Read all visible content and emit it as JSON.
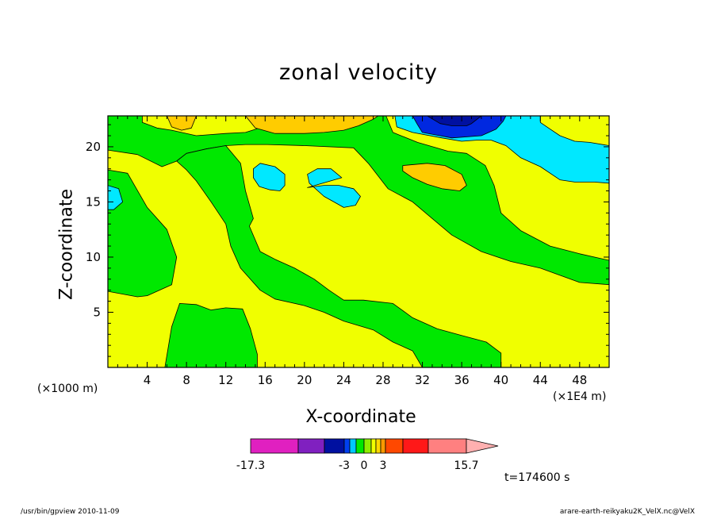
{
  "chart_data": {
    "type": "heatmap",
    "title": "zonal velocity",
    "xlabel": "X-coordinate",
    "ylabel": "Z-coordinate",
    "x_unit_left": "(×1000 m)",
    "x_unit_right": "(×1E4 m)",
    "xlim": [
      0,
      51
    ],
    "ylim": [
      0,
      22.8
    ],
    "x_ticks": [
      4,
      8,
      12,
      16,
      20,
      24,
      28,
      32,
      36,
      40,
      44,
      48
    ],
    "y_ticks": [
      5,
      10,
      15,
      20
    ],
    "contour_levels": [
      -17.3,
      -10,
      -3,
      -2,
      -1,
      0,
      1,
      2,
      3,
      6,
      10,
      15.7
    ],
    "colorbar": {
      "tick_labels": [
        "-17.3",
        "-3",
        "0",
        "3",
        "15.7"
      ],
      "colors": [
        "#e020c0",
        "#8020c0",
        "#0010a0",
        "#0040f0",
        "#00c8ff",
        "#00e800",
        "#90ee00",
        "#f0ff00",
        "#ffd800",
        "#ff9900",
        "#ff4800",
        "#ff1818",
        "#ff8080",
        "#ffb0b0"
      ]
    },
    "regions": [
      {
        "value_class": "positive",
        "color": "#f0ff00",
        "points": [
          [
            0,
            22.8
          ],
          [
            51,
            22.8
          ],
          [
            51,
            0
          ],
          [
            0,
            0
          ]
        ]
      },
      {
        "value_class": "negative",
        "color": "#00e800",
        "points": [
          [
            0,
            19.7
          ],
          [
            3,
            19.3
          ],
          [
            5.5,
            18.2
          ],
          [
            7,
            18.7
          ],
          [
            8,
            19.4
          ],
          [
            10,
            19.8
          ],
          [
            12,
            20.1
          ],
          [
            14,
            20.2
          ],
          [
            16.2,
            20.2
          ],
          [
            20,
            20.1
          ],
          [
            25,
            19.9
          ],
          [
            26.5,
            18.5
          ],
          [
            28.5,
            16.2
          ],
          [
            31,
            15
          ],
          [
            33,
            13.5
          ],
          [
            35,
            12
          ],
          [
            38,
            10.5
          ],
          [
            41,
            9.6
          ],
          [
            44,
            9
          ],
          [
            48,
            7.7
          ],
          [
            51,
            7.5
          ],
          [
            51,
            9.7
          ],
          [
            48,
            10.3
          ],
          [
            45,
            11
          ],
          [
            42,
            12.4
          ],
          [
            40,
            14
          ],
          [
            39.3,
            16.5
          ],
          [
            38.4,
            18.3
          ],
          [
            36.5,
            19.4
          ],
          [
            34.6,
            19.6
          ],
          [
            31.5,
            20.4
          ],
          [
            29,
            21.3
          ],
          [
            28.3,
            22.8
          ],
          [
            16,
            22.8
          ],
          [
            15.8,
            21.8
          ],
          [
            14,
            21.3
          ],
          [
            12,
            21.2
          ],
          [
            9,
            21
          ],
          [
            6.5,
            21.5
          ],
          [
            5,
            21.7
          ],
          [
            3.5,
            22.2
          ],
          [
            3.5,
            22.8
          ],
          [
            0,
            22.8
          ]
        ]
      },
      {
        "value_class": "negative",
        "color": "#00e800",
        "points": [
          [
            0,
            17.9
          ],
          [
            2,
            17.6
          ],
          [
            4,
            14.5
          ],
          [
            6,
            12.5
          ],
          [
            7,
            10
          ],
          [
            6.5,
            7.5
          ],
          [
            4,
            6.5
          ],
          [
            3,
            6.4
          ],
          [
            0,
            6.9
          ]
        ]
      },
      {
        "value_class": "negative",
        "color": "#00e800",
        "points": [
          [
            14,
            16
          ],
          [
            14.8,
            13.5
          ],
          [
            14.4,
            12.8
          ],
          [
            15.5,
            10.5
          ],
          [
            17,
            9.8
          ],
          [
            19,
            9
          ],
          [
            21,
            8
          ],
          [
            22.5,
            7
          ],
          [
            24,
            6.1
          ],
          [
            26,
            6.1
          ],
          [
            29,
            5.8
          ],
          [
            31,
            4.5
          ],
          [
            33.5,
            3.5
          ],
          [
            36,
            2.9
          ],
          [
            38.5,
            2.3
          ],
          [
            40,
            1.3
          ],
          [
            40,
            0
          ],
          [
            32,
            0
          ],
          [
            31,
            1.5
          ],
          [
            29,
            2.3
          ],
          [
            27,
            3.4
          ],
          [
            24,
            4.2
          ],
          [
            22,
            5
          ],
          [
            20,
            5.6
          ],
          [
            17,
            6.2
          ],
          [
            15.5,
            7
          ],
          [
            13.5,
            9
          ],
          [
            12.5,
            11
          ],
          [
            12,
            13
          ],
          [
            10.5,
            15
          ],
          [
            9,
            16.9
          ],
          [
            8,
            17.9
          ],
          [
            7,
            18.7
          ],
          [
            8,
            19.4
          ],
          [
            10,
            19.8
          ],
          [
            12,
            20.1
          ],
          [
            13.5,
            18.5
          ]
        ]
      },
      {
        "value_class": "negative",
        "color": "#00e800",
        "points": [
          [
            5.8,
            0
          ],
          [
            6.5,
            3.7
          ],
          [
            7.3,
            5.8
          ],
          [
            9,
            5.7
          ],
          [
            10.5,
            5.2
          ],
          [
            12,
            5.4
          ],
          [
            13.7,
            5.3
          ],
          [
            14.5,
            3.5
          ],
          [
            15.2,
            1.2
          ],
          [
            15.2,
            0
          ]
        ]
      },
      {
        "value_class": "strong negative",
        "color": "#00e8ff",
        "points": [
          [
            0,
            16.5
          ],
          [
            1.1,
            16.2
          ],
          [
            1.5,
            15
          ],
          [
            0.6,
            14.3
          ],
          [
            0,
            14.3
          ]
        ]
      },
      {
        "value_class": "strong negative",
        "color": "#00e8ff",
        "points": [
          [
            14.8,
            18
          ],
          [
            15.5,
            18.5
          ],
          [
            17,
            18.2
          ],
          [
            18,
            17.5
          ],
          [
            18,
            16.5
          ],
          [
            17.5,
            16
          ],
          [
            16.5,
            16.1
          ],
          [
            15.4,
            16.4
          ],
          [
            14.8,
            17.2
          ]
        ]
      },
      {
        "value_class": "strong negative",
        "color": "#00e8ff",
        "points": [
          [
            20.3,
            16.3
          ],
          [
            22,
            16.5
          ],
          [
            23.5,
            16.5
          ],
          [
            25,
            16.2
          ],
          [
            25.7,
            15.5
          ],
          [
            25.2,
            14.7
          ],
          [
            24,
            14.5
          ],
          [
            23,
            15
          ],
          [
            22,
            15.5
          ],
          [
            20.5,
            16.7
          ],
          [
            20.3,
            17.5
          ],
          [
            21.3,
            18
          ],
          [
            22.7,
            18
          ],
          [
            23.8,
            17.2
          ]
        ]
      },
      {
        "value_class": "strong negative",
        "color": "#00e8ff",
        "points": [
          [
            29.2,
            22.8
          ],
          [
            29.4,
            21.8
          ],
          [
            31,
            21.3
          ],
          [
            34,
            20.8
          ],
          [
            36,
            20.5
          ],
          [
            37.5,
            20.6
          ],
          [
            39,
            20.6
          ],
          [
            40.5,
            20.1
          ],
          [
            42,
            19
          ],
          [
            44,
            18.2
          ],
          [
            46,
            17
          ],
          [
            47.5,
            16.8
          ],
          [
            49.5,
            16.8
          ],
          [
            51,
            16.7
          ],
          [
            51,
            20.1
          ],
          [
            49,
            20.4
          ],
          [
            47.5,
            20.5
          ],
          [
            46,
            21
          ],
          [
            45,
            21.6
          ],
          [
            44,
            22.2
          ],
          [
            44,
            22.8
          ]
        ]
      },
      {
        "value_class": "minimum",
        "color": "#0028e0",
        "points": [
          [
            31,
            22.8
          ],
          [
            31.5,
            22
          ],
          [
            32,
            21.3
          ],
          [
            35,
            20.8
          ],
          [
            38,
            21
          ],
          [
            39.5,
            21.6
          ],
          [
            40.2,
            22.3
          ],
          [
            40.5,
            22.8
          ]
        ]
      },
      {
        "value_class": "minimum core",
        "color": "#0010a0",
        "points": [
          [
            32.5,
            22.8
          ],
          [
            33.8,
            22.1
          ],
          [
            35,
            21.9
          ],
          [
            36.5,
            21.9
          ],
          [
            37,
            22.1
          ],
          [
            38,
            22.8
          ]
        ]
      },
      {
        "value_class": "maximum",
        "color": "#ffcc00",
        "points": [
          [
            30,
            18.3
          ],
          [
            32.5,
            18.5
          ],
          [
            34.3,
            18.3
          ],
          [
            36,
            17.5
          ],
          [
            36.5,
            16.5
          ],
          [
            35.8,
            16
          ],
          [
            34,
            16.2
          ],
          [
            32.5,
            16.6
          ],
          [
            31,
            17.2
          ],
          [
            30,
            17.8
          ]
        ]
      },
      {
        "value_class": "maximum",
        "color": "#ffcc00",
        "points": [
          [
            14,
            22.8
          ],
          [
            15,
            21.7
          ],
          [
            17,
            21.2
          ],
          [
            20,
            21.2
          ],
          [
            22,
            21.3
          ],
          [
            24,
            21.5
          ],
          [
            25.5,
            21.9
          ],
          [
            27,
            22.5
          ],
          [
            27.5,
            22.8
          ]
        ]
      },
      {
        "value_class": "maximum",
        "color": "#ffcc00",
        "points": [
          [
            6,
            22.8
          ],
          [
            6.5,
            21.8
          ],
          [
            7.5,
            21.5
          ],
          [
            8.5,
            21.7
          ],
          [
            9,
            22.8
          ]
        ]
      }
    ]
  },
  "time_label": "t=174600 s",
  "footer_left": "/usr/bin/gpview   2010-11-09",
  "footer_right": "arare-earth-reikyaku2K_VelX.nc@VelX"
}
